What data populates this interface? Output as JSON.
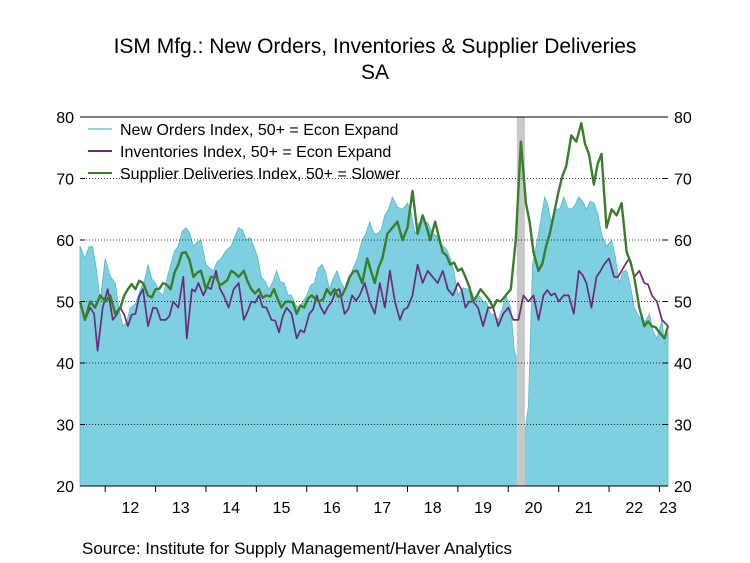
{
  "chart_data": {
    "type": "area+line",
    "title": "ISM Mfg.: New Orders, Inventories & Supplier Deliveries",
    "subtitle": "SA",
    "source": "Source:  Institute for Supply Management/Haver Analytics",
    "ylim": [
      20,
      80
    ],
    "yticks": [
      "20",
      "30",
      "40",
      "50",
      "60",
      "70",
      "80"
    ],
    "xticks": [
      "12",
      "13",
      "14",
      "15",
      "16",
      "17",
      "18",
      "19",
      "20",
      "21",
      "22",
      "23"
    ],
    "x_range": [
      2011.5,
      2023.17
    ],
    "grid": true,
    "legend_position": "top-left",
    "recession_shading": {
      "start": 2020.17,
      "end": 2020.33
    },
    "series": [
      {
        "name": "New Orders Index, 50+ = Econ Expand",
        "type": "area",
        "color": "#7ecfdf",
        "anchors": [
          [
            2011.5,
            59
          ],
          [
            2011.6,
            57
          ],
          [
            2011.75,
            59
          ],
          [
            2011.9,
            50
          ],
          [
            2012.0,
            57
          ],
          [
            2012.2,
            53
          ],
          [
            2012.35,
            46
          ],
          [
            2012.5,
            49
          ],
          [
            2012.7,
            52
          ],
          [
            2012.85,
            56
          ],
          [
            2013.0,
            53
          ],
          [
            2013.15,
            51
          ],
          [
            2013.3,
            56
          ],
          [
            2013.45,
            59
          ],
          [
            2013.6,
            62
          ],
          [
            2013.75,
            59
          ],
          [
            2013.9,
            60
          ],
          [
            2014.0,
            56
          ],
          [
            2014.15,
            55
          ],
          [
            2014.3,
            57
          ],
          [
            2014.5,
            59
          ],
          [
            2014.65,
            62
          ],
          [
            2014.8,
            60
          ],
          [
            2014.95,
            59
          ],
          [
            2015.1,
            54
          ],
          [
            2015.25,
            52
          ],
          [
            2015.4,
            55
          ],
          [
            2015.55,
            53
          ],
          [
            2015.7,
            51
          ],
          [
            2015.85,
            49
          ],
          [
            2016.0,
            51
          ],
          [
            2016.15,
            53
          ],
          [
            2016.3,
            56
          ],
          [
            2016.45,
            52
          ],
          [
            2016.6,
            55
          ],
          [
            2016.75,
            52
          ],
          [
            2016.9,
            55
          ],
          [
            2017.1,
            60
          ],
          [
            2017.25,
            63
          ],
          [
            2017.4,
            61
          ],
          [
            2017.55,
            64
          ],
          [
            2017.7,
            67
          ],
          [
            2017.9,
            65
          ],
          [
            2018.0,
            66
          ],
          [
            2018.15,
            61
          ],
          [
            2018.3,
            63
          ],
          [
            2018.5,
            61
          ],
          [
            2018.7,
            59
          ],
          [
            2018.85,
            57
          ],
          [
            2019.0,
            51
          ],
          [
            2019.2,
            52
          ],
          [
            2019.35,
            50
          ],
          [
            2019.5,
            50
          ],
          [
            2019.65,
            48
          ],
          [
            2019.8,
            47
          ],
          [
            2019.95,
            51
          ],
          [
            2020.05,
            49
          ],
          [
            2020.12,
            42
          ],
          [
            2020.2,
            40
          ],
          [
            2020.3,
            27
          ],
          [
            2020.4,
            33
          ],
          [
            2020.48,
            56
          ],
          [
            2020.6,
            61
          ],
          [
            2020.72,
            67
          ],
          [
            2020.85,
            63
          ],
          [
            2020.95,
            65
          ],
          [
            2021.1,
            67
          ],
          [
            2021.25,
            65
          ],
          [
            2021.4,
            67
          ],
          [
            2021.55,
            65
          ],
          [
            2021.7,
            66
          ],
          [
            2021.85,
            61
          ],
          [
            2021.95,
            59
          ],
          [
            2022.05,
            60
          ],
          [
            2022.2,
            53
          ],
          [
            2022.35,
            55
          ],
          [
            2022.5,
            49
          ],
          [
            2022.65,
            47
          ],
          [
            2022.8,
            48
          ],
          [
            2022.95,
            44
          ],
          [
            2023.05,
            47
          ],
          [
            2023.1,
            43
          ],
          [
            2023.17,
            45
          ]
        ]
      },
      {
        "name": "Inventories Index, 50+ = Econ Expand",
        "type": "line",
        "color": "#6b2a7a",
        "anchors": [
          [
            2011.5,
            50
          ],
          [
            2011.6,
            47
          ],
          [
            2011.7,
            49
          ],
          [
            2011.78,
            48
          ],
          [
            2011.85,
            42
          ],
          [
            2011.95,
            49
          ],
          [
            2012.05,
            52
          ],
          [
            2012.15,
            47
          ],
          [
            2012.3,
            49
          ],
          [
            2012.45,
            46
          ],
          [
            2012.6,
            48
          ],
          [
            2012.75,
            52
          ],
          [
            2012.85,
            46
          ],
          [
            2012.95,
            49
          ],
          [
            2013.1,
            47
          ],
          [
            2013.2,
            47
          ],
          [
            2013.35,
            50
          ],
          [
            2013.45,
            49
          ],
          [
            2013.55,
            54
          ],
          [
            2013.62,
            44
          ],
          [
            2013.72,
            52
          ],
          [
            2013.85,
            53
          ],
          [
            2013.95,
            51
          ],
          [
            2014.1,
            52
          ],
          [
            2014.2,
            55
          ],
          [
            2014.35,
            51
          ],
          [
            2014.45,
            49
          ],
          [
            2014.55,
            52
          ],
          [
            2014.65,
            53
          ],
          [
            2014.75,
            47
          ],
          [
            2014.9,
            50
          ],
          [
            2015.05,
            51
          ],
          [
            2015.2,
            49
          ],
          [
            2015.3,
            47
          ],
          [
            2015.45,
            45
          ],
          [
            2015.6,
            49
          ],
          [
            2015.7,
            48
          ],
          [
            2015.8,
            44
          ],
          [
            2015.95,
            45
          ],
          [
            2016.05,
            48
          ],
          [
            2016.2,
            51
          ],
          [
            2016.35,
            48
          ],
          [
            2016.5,
            50
          ],
          [
            2016.65,
            52
          ],
          [
            2016.75,
            48
          ],
          [
            2016.9,
            51
          ],
          [
            2017.05,
            51
          ],
          [
            2017.15,
            53
          ],
          [
            2017.25,
            50
          ],
          [
            2017.35,
            48
          ],
          [
            2017.45,
            53
          ],
          [
            2017.55,
            49
          ],
          [
            2017.65,
            55
          ],
          [
            2017.75,
            50
          ],
          [
            2017.85,
            47
          ],
          [
            2018.0,
            49
          ],
          [
            2018.1,
            51
          ],
          [
            2018.2,
            56
          ],
          [
            2018.3,
            53
          ],
          [
            2018.4,
            55
          ],
          [
            2018.5,
            54
          ],
          [
            2018.6,
            53
          ],
          [
            2018.7,
            55
          ],
          [
            2018.8,
            52
          ],
          [
            2018.9,
            51
          ],
          [
            2019.0,
            53
          ],
          [
            2019.15,
            49
          ],
          [
            2019.3,
            50
          ],
          [
            2019.4,
            49
          ],
          [
            2019.5,
            46
          ],
          [
            2019.6,
            49
          ],
          [
            2019.7,
            49
          ],
          [
            2019.8,
            46
          ],
          [
            2019.9,
            48
          ],
          [
            2020.0,
            49
          ],
          [
            2020.1,
            47
          ],
          [
            2020.2,
            47
          ],
          [
            2020.3,
            51
          ],
          [
            2020.4,
            50
          ],
          [
            2020.5,
            51
          ],
          [
            2020.6,
            47
          ],
          [
            2020.7,
            51
          ],
          [
            2020.85,
            51
          ],
          [
            2021.0,
            50
          ],
          [
            2021.1,
            51
          ],
          [
            2021.2,
            51
          ],
          [
            2021.3,
            48
          ],
          [
            2021.4,
            55
          ],
          [
            2021.55,
            53
          ],
          [
            2021.65,
            49
          ],
          [
            2021.75,
            54
          ],
          [
            2021.9,
            56
          ],
          [
            2022.0,
            57
          ],
          [
            2022.1,
            54
          ],
          [
            2022.25,
            55
          ],
          [
            2022.4,
            57
          ],
          [
            2022.5,
            54
          ],
          [
            2022.6,
            55
          ],
          [
            2022.7,
            53
          ],
          [
            2022.85,
            51
          ],
          [
            2022.95,
            50
          ],
          [
            2023.05,
            47
          ],
          [
            2023.17,
            46
          ]
        ]
      },
      {
        "name": "Supplier Deliveries Index, 50+ = Slower",
        "type": "line",
        "color": "#3a7d2c",
        "anchors": [
          [
            2011.5,
            50
          ],
          [
            2011.6,
            47
          ],
          [
            2011.7,
            50
          ],
          [
            2011.8,
            49
          ],
          [
            2011.9,
            51
          ],
          [
            2012.0,
            50
          ],
          [
            2012.1,
            51
          ],
          [
            2012.2,
            48
          ],
          [
            2012.3,
            49
          ],
          [
            2012.45,
            52
          ],
          [
            2012.6,
            52
          ],
          [
            2012.75,
            53
          ],
          [
            2012.85,
            51
          ],
          [
            2013.0,
            52
          ],
          [
            2013.15,
            53
          ],
          [
            2013.3,
            52
          ],
          [
            2013.45,
            56
          ],
          [
            2013.6,
            58
          ],
          [
            2013.75,
            54
          ],
          [
            2013.9,
            55
          ],
          [
            2014.0,
            52
          ],
          [
            2014.1,
            54
          ],
          [
            2014.2,
            54
          ],
          [
            2014.35,
            53
          ],
          [
            2014.5,
            55
          ],
          [
            2014.65,
            54
          ],
          [
            2014.75,
            55
          ],
          [
            2014.9,
            52
          ],
          [
            2015.05,
            52
          ],
          [
            2015.2,
            51
          ],
          [
            2015.35,
            52
          ],
          [
            2015.5,
            49
          ],
          [
            2015.65,
            50
          ],
          [
            2015.8,
            48
          ],
          [
            2015.95,
            49
          ],
          [
            2016.1,
            51
          ],
          [
            2016.25,
            50
          ],
          [
            2016.4,
            52
          ],
          [
            2016.55,
            52
          ],
          [
            2016.7,
            51
          ],
          [
            2016.85,
            54
          ],
          [
            2017.0,
            55
          ],
          [
            2017.1,
            53
          ],
          [
            2017.2,
            57
          ],
          [
            2017.35,
            53
          ],
          [
            2017.5,
            57
          ],
          [
            2017.6,
            61
          ],
          [
            2017.7,
            62
          ],
          [
            2017.8,
            63
          ],
          [
            2017.9,
            60
          ],
          [
            2018.0,
            62
          ],
          [
            2018.1,
            68
          ],
          [
            2018.2,
            61
          ],
          [
            2018.3,
            64
          ],
          [
            2018.45,
            60
          ],
          [
            2018.55,
            63
          ],
          [
            2018.7,
            58
          ],
          [
            2018.85,
            56
          ],
          [
            2019.0,
            55
          ],
          [
            2019.15,
            54
          ],
          [
            2019.3,
            50
          ],
          [
            2019.45,
            52
          ],
          [
            2019.55,
            51
          ],
          [
            2019.7,
            49
          ],
          [
            2019.85,
            50
          ],
          [
            2019.95,
            51
          ],
          [
            2020.05,
            52
          ],
          [
            2020.15,
            60
          ],
          [
            2020.25,
            76
          ],
          [
            2020.35,
            66
          ],
          [
            2020.5,
            58
          ],
          [
            2020.6,
            55
          ],
          [
            2020.75,
            59
          ],
          [
            2020.9,
            64
          ],
          [
            2021.0,
            68
          ],
          [
            2021.15,
            72
          ],
          [
            2021.25,
            77
          ],
          [
            2021.35,
            76
          ],
          [
            2021.45,
            79
          ],
          [
            2021.6,
            74
          ],
          [
            2021.7,
            69
          ],
          [
            2021.85,
            74
          ],
          [
            2021.95,
            62
          ],
          [
            2022.05,
            65
          ],
          [
            2022.15,
            64
          ],
          [
            2022.25,
            66
          ],
          [
            2022.35,
            58
          ],
          [
            2022.5,
            54
          ],
          [
            2022.6,
            49
          ],
          [
            2022.7,
            46
          ],
          [
            2022.85,
            46
          ],
          [
            2023.0,
            45
          ],
          [
            2023.1,
            44
          ],
          [
            2023.17,
            46
          ]
        ]
      }
    ]
  }
}
